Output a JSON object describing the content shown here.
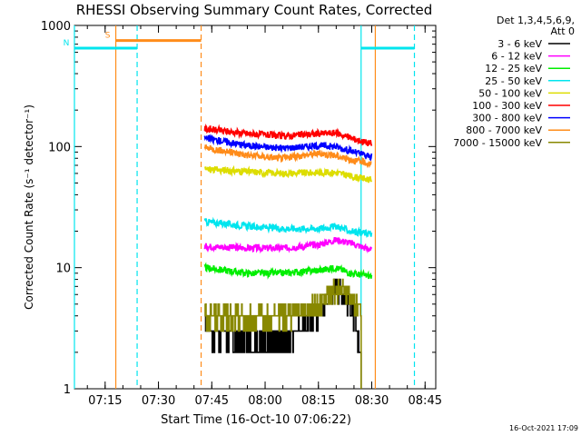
{
  "chart_data": {
    "type": "line",
    "title": "RHESSI Observing Summary Count Rates, Corrected",
    "xlabel": "Start Time (16-Oct-10 07:06:22)",
    "ylabel": "Corrected Count Rate (s⁻¹ detector⁻¹)",
    "y_scale": "log",
    "ylim": [
      1,
      1000
    ],
    "xlim": [
      "07:06:22",
      "08:48:00"
    ],
    "x_ticks": [
      "07:15",
      "07:30",
      "07:45",
      "08:00",
      "08:15",
      "08:30",
      "08:45"
    ],
    "y_ticks": [
      "1",
      "10",
      "100",
      "1000"
    ],
    "legend": {
      "placement": "right",
      "header": [
        "Det 1,3,4,5,6,9,",
        "Att 0"
      ],
      "entries": [
        {
          "name": "3 - 6 keV",
          "color": "#000000"
        },
        {
          "name": "6 - 12 keV",
          "color": "#ff00ff"
        },
        {
          "name": "12 - 25 keV",
          "color": "#00ee00"
        },
        {
          "name": "25 - 50 keV",
          "color": "#00e5ee"
        },
        {
          "name": "50 - 100 keV",
          "color": "#dddd00"
        },
        {
          "name": "100 - 300 keV",
          "color": "#ff0000"
        },
        {
          "name": "300 - 800 keV",
          "color": "#0000ff"
        },
        {
          "name": "800 - 7000 keV",
          "color": "#ff8c1a"
        },
        {
          "name": "7000 - 15000 keV",
          "color": "#888800"
        }
      ]
    },
    "data_interval": [
      "07:43:00",
      "08:31:00"
    ],
    "series": [
      {
        "name": "3 - 6 keV",
        "color": "#000000",
        "x": [
          "07:43",
          "07:55",
          "08:05",
          "08:15",
          "08:20",
          "08:24",
          "08:27"
        ],
        "values": [
          3.0,
          2.5,
          2.5,
          4.0,
          7.0,
          5.0,
          2.0
        ]
      },
      {
        "name": "6 - 12 keV",
        "color": "#ff00ff",
        "x": [
          "07:43",
          "07:55",
          "08:05",
          "08:15",
          "08:20",
          "08:24",
          "08:30"
        ],
        "values": [
          15,
          14.5,
          14.5,
          15.5,
          17,
          16,
          14
        ]
      },
      {
        "name": "12 - 25 keV",
        "color": "#00ee00",
        "x": [
          "07:43",
          "07:55",
          "08:05",
          "08:15",
          "08:20",
          "08:24",
          "08:30"
        ],
        "values": [
          10,
          9,
          9,
          9.5,
          10,
          9,
          8.5
        ]
      },
      {
        "name": "25 - 50 keV",
        "color": "#00e5ee",
        "x": [
          "07:43",
          "07:55",
          "08:05",
          "08:15",
          "08:20",
          "08:24",
          "08:30"
        ],
        "values": [
          24,
          22,
          21,
          21,
          22,
          20,
          19
        ]
      },
      {
        "name": "50 - 100 keV",
        "color": "#dddd00",
        "x": [
          "07:43",
          "07:55",
          "08:05",
          "08:15",
          "08:20",
          "08:24",
          "08:30"
        ],
        "values": [
          65,
          62,
          60,
          61,
          61,
          57,
          53
        ]
      },
      {
        "name": "100 - 300 keV",
        "color": "#ff0000",
        "x": [
          "07:43",
          "07:55",
          "08:05",
          "08:15",
          "08:20",
          "08:24",
          "08:30"
        ],
        "values": [
          140,
          128,
          122,
          128,
          130,
          118,
          105
        ]
      },
      {
        "name": "300 - 800 keV",
        "color": "#0000ff",
        "x": [
          "07:43",
          "07:55",
          "08:05",
          "08:15",
          "08:20",
          "08:24",
          "08:30"
        ],
        "values": [
          118,
          102,
          97,
          102,
          100,
          92,
          82
        ]
      },
      {
        "name": "800 - 7000 keV",
        "color": "#ff8c1a",
        "x": [
          "07:43",
          "07:55",
          "08:05",
          "08:15",
          "08:20",
          "08:24",
          "08:30"
        ],
        "values": [
          98,
          85,
          80,
          88,
          84,
          78,
          72
        ]
      },
      {
        "name": "7000 - 15000 keV",
        "color": "#888800",
        "x": [
          "07:43",
          "07:55",
          "08:05",
          "08:15",
          "08:20",
          "08:24",
          "08:27"
        ],
        "values": [
          4.0,
          3.8,
          4.0,
          5.0,
          6.5,
          6.0,
          4.0
        ]
      }
    ],
    "intervals": [
      {
        "label": "S",
        "color": "#ff8c1a",
        "start": "07:18:00",
        "end": "07:42:00",
        "level": 750
      },
      {
        "label": "N",
        "color": "#00e5ee",
        "start": "07:06:22",
        "end": "07:24:00",
        "level": 650
      },
      {
        "label": "",
        "color": "#00e5ee",
        "start": "08:27:00",
        "end": "08:42:00",
        "level": 650
      }
    ],
    "vlines": [
      {
        "x": "07:06:22",
        "color": "#00e5ee",
        "style": "solid"
      },
      {
        "x": "07:18:00",
        "color": "#ff8c1a",
        "style": "solid"
      },
      {
        "x": "07:24:00",
        "color": "#00e5ee",
        "style": "dashed"
      },
      {
        "x": "07:42:00",
        "color": "#ff8c1a",
        "style": "dashed"
      },
      {
        "x": "08:27:00",
        "color": "#00e5ee",
        "style": "solid"
      },
      {
        "x": "08:31:00",
        "color": "#ff8c1a",
        "style": "solid"
      },
      {
        "x": "08:42:00",
        "color": "#00e5ee",
        "style": "dashed"
      }
    ],
    "timestamp": "16-Oct-2021 17:09",
    "grid": false
  }
}
